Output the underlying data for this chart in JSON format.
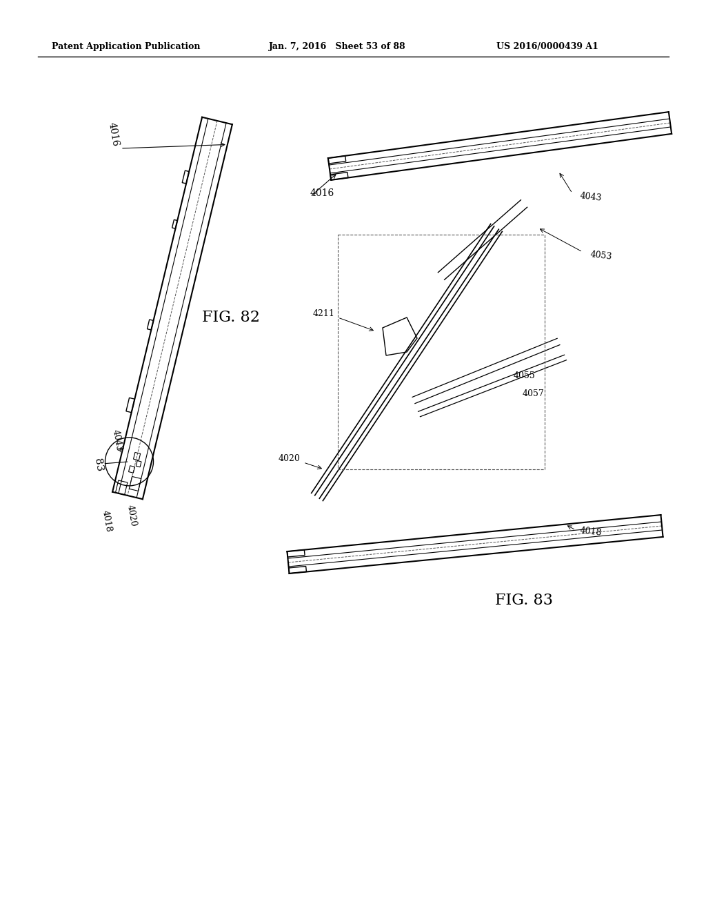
{
  "bg_color": "#ffffff",
  "header_left": "Patent Application Publication",
  "header_center": "Jan. 7, 2016   Sheet 53 of 88",
  "header_right": "US 2016/0000439 A1",
  "fig82_label": "FIG. 82",
  "fig83_label": "FIG. 83",
  "labels": {
    "4016_left": "4016",
    "4043_left": "4043",
    "4020_left": "4020",
    "4018_left": "4018",
    "83_left": "83",
    "4016_right": "4016",
    "4043_right": "4043",
    "4053_right": "4053",
    "4020_right": "4020",
    "4018_right": "4018",
    "4211_right": "4211",
    "4055_right": "4055",
    "4057_right": "4057"
  },
  "line_color": "#000000",
  "text_color": "#000000",
  "dashed_color": "#555555"
}
